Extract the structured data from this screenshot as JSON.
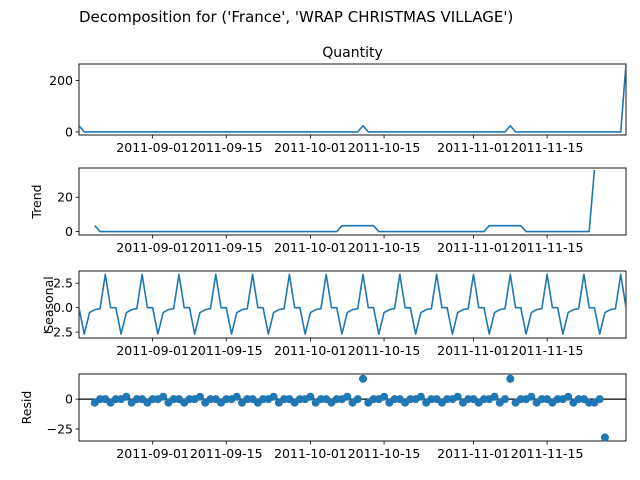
{
  "figure": {
    "suptitle": "Decomposition for ('France', 'WRAP CHRISTMAS VILLAGE')"
  },
  "chart_data": [
    {
      "type": "line",
      "title": "Quantity",
      "ylabel": "",
      "ylim": [
        -12,
        264
      ],
      "yticks": [
        0,
        200
      ],
      "x_start": "2011-08-18",
      "x_end": "2011-11-30",
      "xticks": [
        "2011-09-01",
        "2011-09-15",
        "2011-10-01",
        "2011-10-15",
        "2011-11-01",
        "2011-11-15"
      ],
      "points": [
        [
          "2011-08-18",
          24
        ],
        [
          "2011-08-19",
          0
        ],
        [
          "2011-10-10",
          0
        ],
        [
          "2011-10-11",
          24
        ],
        [
          "2011-10-12",
          0
        ],
        [
          "2011-11-07",
          0
        ],
        [
          "2011-11-08",
          24
        ],
        [
          "2011-11-09",
          0
        ],
        [
          "2011-11-29",
          0
        ],
        [
          "2011-11-30",
          264
        ]
      ]
    },
    {
      "type": "line",
      "title": "",
      "ylabel": "Trend",
      "ylim": [
        -2,
        37
      ],
      "yticks": [
        0,
        20
      ],
      "x_start": "2011-08-18",
      "x_end": "2011-11-30",
      "xticks": [
        "2011-09-01",
        "2011-09-15",
        "2011-10-01",
        "2011-10-15",
        "2011-11-01",
        "2011-11-15"
      ],
      "points": [
        [
          "2011-08-21",
          3.4
        ],
        [
          "2011-08-22",
          0
        ],
        [
          "2011-10-06",
          0
        ],
        [
          "2011-10-07",
          3.4
        ],
        [
          "2011-10-13",
          3.4
        ],
        [
          "2011-10-14",
          0
        ],
        [
          "2011-11-03",
          0
        ],
        [
          "2011-11-04",
          3.4
        ],
        [
          "2011-11-10",
          3.4
        ],
        [
          "2011-11-11",
          0
        ],
        [
          "2011-11-23",
          0
        ],
        [
          "2011-11-24",
          36
        ]
      ]
    },
    {
      "type": "line",
      "title": "",
      "ylabel": "Seasonal",
      "ylim": [
        -3.1,
        3.75
      ],
      "yticks": [
        2.5,
        0.0,
        -2.5
      ],
      "yticklabels": [
        "2.5",
        "0.0",
        "−2.5"
      ],
      "x_start": "2011-08-18",
      "x_end": "2011-11-30",
      "xticks": [
        "2011-09-01",
        "2011-09-15",
        "2011-10-01",
        "2011-10-15",
        "2011-11-01",
        "2011-11-15"
      ],
      "period_start": "2011-08-18",
      "period_pattern": [
        0.0,
        -2.7,
        -0.5,
        -0.2,
        -0.1,
        3.4,
        0.0
      ]
    },
    {
      "type": "scatter",
      "title": "",
      "ylabel": "Resid",
      "ylim": [
        -35,
        21
      ],
      "yticks": [
        0,
        -25
      ],
      "yticklabels": [
        "0",
        "−25"
      ],
      "zero_line": true,
      "x_start": "2011-08-18",
      "x_end": "2011-11-30",
      "xticks": [
        "2011-09-01",
        "2011-09-15",
        "2011-10-01",
        "2011-10-15",
        "2011-11-01",
        "2011-11-15"
      ],
      "period_start": "2011-08-21",
      "period_pattern": [
        -3,
        0,
        0,
        -3,
        0,
        0,
        2
      ],
      "outliers": [
        [
          "2011-10-11",
          17
        ],
        [
          "2011-10-12",
          -3
        ],
        [
          "2011-11-08",
          17
        ],
        [
          "2011-11-24",
          -3
        ],
        [
          "2011-11-25",
          0
        ],
        [
          "2011-11-26",
          -32
        ]
      ]
    }
  ],
  "colors": {
    "line": "#1f77b4",
    "axes": "#000000"
  }
}
